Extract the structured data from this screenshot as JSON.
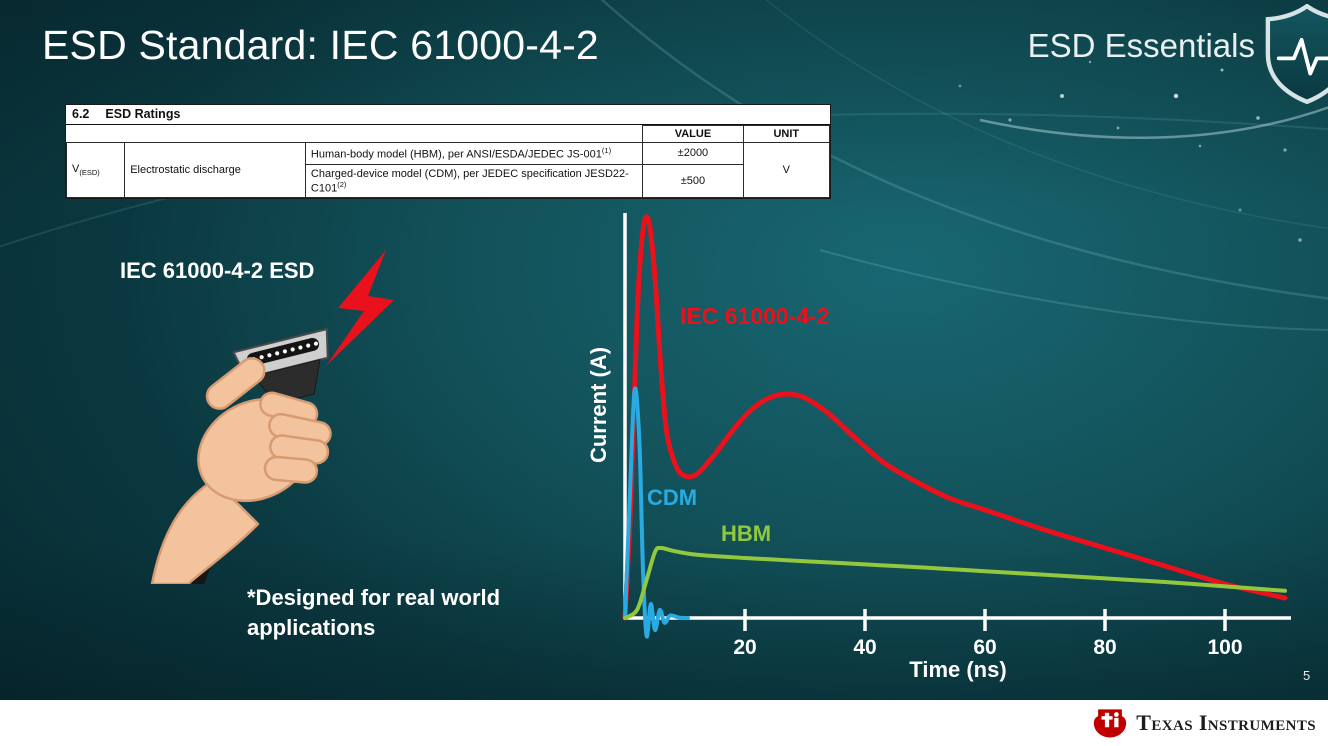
{
  "slide": {
    "title": "ESD Standard: IEC 61000-4-2",
    "series_brand": "ESD Essentials",
    "page_number": "5"
  },
  "ratings_table": {
    "section_number": "6.2",
    "section_title": "ESD Ratings",
    "headers": {
      "value": "VALUE",
      "unit": "UNIT"
    },
    "param": {
      "symbol": "V",
      "symbol_sub": "(ESD)",
      "name": "Electrostatic discharge"
    },
    "rows": [
      {
        "description": "Human-body model (HBM), per ANSI/ESDA/JEDEC JS-001",
        "footnote": "(1)",
        "value": "±2000"
      },
      {
        "description": "Charged-device model (CDM), per JEDEC specification JESD22-C101",
        "footnote": "(2)",
        "value": "±500"
      }
    ],
    "unit": "V"
  },
  "illustration": {
    "caption": "IEC 61000-4-2 ESD",
    "note": "*Designed for real world applications"
  },
  "chart_data": {
    "type": "line",
    "title": "",
    "xlabel": "Time (ns)",
    "ylabel": "Current (A)",
    "x_ticks": [
      20,
      40,
      60,
      80,
      100
    ],
    "xlim": [
      0,
      111
    ],
    "ylim": [
      -0.06,
      1.05
    ],
    "grid": false,
    "legend_position": "inline-labels",
    "note": "Y axis has no numeric ticks; current values normalized to IEC 61000-4-2 peak = 1.0",
    "series": [
      {
        "name": "IEC 61000-4-2",
        "color": "#e8111c",
        "stroke_width": 5,
        "points": [
          [
            0,
            0
          ],
          [
            1,
            0.3
          ],
          [
            2,
            0.75
          ],
          [
            3,
            0.97
          ],
          [
            4,
            0.99
          ],
          [
            5,
            0.85
          ],
          [
            6,
            0.62
          ],
          [
            7,
            0.46
          ],
          [
            8.5,
            0.38
          ],
          [
            10,
            0.355
          ],
          [
            12,
            0.36
          ],
          [
            15,
            0.41
          ],
          [
            18,
            0.47
          ],
          [
            21,
            0.52
          ],
          [
            24,
            0.55
          ],
          [
            27,
            0.56
          ],
          [
            30,
            0.55
          ],
          [
            34,
            0.51
          ],
          [
            38,
            0.455
          ],
          [
            43,
            0.39
          ],
          [
            48,
            0.345
          ],
          [
            54,
            0.3
          ],
          [
            60,
            0.27
          ],
          [
            70,
            0.22
          ],
          [
            80,
            0.175
          ],
          [
            90,
            0.13
          ],
          [
            100,
            0.085
          ],
          [
            110,
            0.05
          ]
        ]
      },
      {
        "name": "CDM",
        "color": "#29abe2",
        "stroke_width": 4,
        "points": [
          [
            0,
            0
          ],
          [
            0.8,
            0.3
          ],
          [
            1.6,
            0.57
          ],
          [
            2.4,
            0.44
          ],
          [
            3,
            0.12
          ],
          [
            3.6,
            -0.045
          ],
          [
            4.3,
            0.035
          ],
          [
            5,
            -0.03
          ],
          [
            5.8,
            0.02
          ],
          [
            6.6,
            -0.012
          ],
          [
            7.5,
            0.006
          ],
          [
            9,
            0.001
          ],
          [
            10.5,
            0
          ]
        ]
      },
      {
        "name": "HBM",
        "color": "#92c83e",
        "stroke_width": 4,
        "points": [
          [
            0,
            0
          ],
          [
            2,
            0.02
          ],
          [
            3.5,
            0.09
          ],
          [
            5,
            0.165
          ],
          [
            6,
            0.175
          ],
          [
            8,
            0.168
          ],
          [
            12,
            0.158
          ],
          [
            20,
            0.15
          ],
          [
            30,
            0.142
          ],
          [
            40,
            0.134
          ],
          [
            50,
            0.126
          ],
          [
            60,
            0.117
          ],
          [
            70,
            0.108
          ],
          [
            80,
            0.099
          ],
          [
            90,
            0.09
          ],
          [
            100,
            0.079
          ],
          [
            110,
            0.068
          ]
        ]
      }
    ]
  },
  "footer": {
    "brand": "Texas Instruments"
  }
}
